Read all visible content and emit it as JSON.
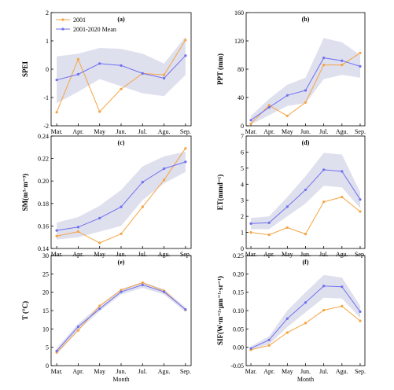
{
  "chart_data": [
    {
      "type": "line",
      "panel_label": "(a)",
      "ylabel": "SPEI",
      "categories": [
        "Mar.",
        "Apr.",
        "May",
        "Jun.",
        "Jul.",
        "Agu.",
        "Sep."
      ],
      "yticks": [
        "-2",
        "-1",
        "0",
        "1",
        "2"
      ],
      "ylim": [
        -2,
        2
      ],
      "legend": {
        "placement": "top-left",
        "entries": [
          "2001",
          "2001-2020 Mean"
        ]
      },
      "series": [
        {
          "name": "2001",
          "color": "#f5a340",
          "values": [
            -1.52,
            0.35,
            -1.5,
            -0.7,
            -0.15,
            -0.2,
            1.03
          ]
        },
        {
          "name": "2001-2020 Mean",
          "color": "#6f6ff0",
          "values": [
            -0.38,
            -0.18,
            0.2,
            0.13,
            -0.15,
            -0.32,
            0.48
          ]
        }
      ],
      "band": {
        "lower": [
          -1.2,
          -0.8,
          -0.35,
          -0.6,
          -0.85,
          -0.95,
          -0.2
        ],
        "upper": [
          0.45,
          0.55,
          0.75,
          0.72,
          0.55,
          0.2,
          1.15
        ]
      }
    },
    {
      "type": "line",
      "panel_label": "(b)",
      "ylabel": "PPT (mm)",
      "categories": [
        "Mar.",
        "Apr.",
        "May",
        "Jun.",
        "Jul.",
        "Agu.",
        "Sep."
      ],
      "yticks": [
        "0",
        "40",
        "80",
        "120",
        "160"
      ],
      "ylim": [
        0,
        160
      ],
      "series": [
        {
          "name": "2001",
          "color": "#f5a340",
          "values": [
            3,
            29,
            14,
            33,
            86,
            86,
            103
          ]
        },
        {
          "name": "2001-2020 Mean",
          "color": "#6f6ff0",
          "values": [
            8,
            26,
            43,
            50,
            96,
            92,
            84
          ]
        }
      ],
      "band": {
        "lower": [
          2,
          15,
          28,
          32,
          66,
          72,
          68
        ],
        "upper": [
          14,
          38,
          58,
          68,
          124,
          118,
          100
        ]
      }
    },
    {
      "type": "line",
      "panel_label": "(c)",
      "ylabel": "SM(m³·m⁻³)",
      "categories": [
        "Mar.",
        "Apr.",
        "May",
        "Jun.",
        "Jul.",
        "Agu.",
        "Sep."
      ],
      "yticks": [
        "0.14",
        "0.16",
        "0.18",
        "0.20",
        "0.22",
        "0.24"
      ],
      "ylim": [
        0.14,
        0.24
      ],
      "series": [
        {
          "name": "2001",
          "color": "#f5a340",
          "values": [
            0.151,
            0.155,
            0.145,
            0.153,
            0.177,
            0.201,
            0.229
          ]
        },
        {
          "name": "2001-2020 Mean",
          "color": "#6f6ff0",
          "values": [
            0.156,
            0.159,
            0.167,
            0.177,
            0.199,
            0.211,
            0.217
          ]
        }
      ],
      "band": {
        "lower": [
          0.148,
          0.15,
          0.155,
          0.16,
          0.183,
          0.198,
          0.208
        ],
        "upper": [
          0.163,
          0.168,
          0.178,
          0.192,
          0.213,
          0.222,
          0.226
        ]
      }
    },
    {
      "type": "line",
      "panel_label": "(d)",
      "ylabel": "ET(mmd⁻¹)",
      "categories": [
        "Mar.",
        "Apr.",
        "May",
        "Jun.",
        "Jul.",
        "Agu.",
        "Sep."
      ],
      "yticks": [
        "0",
        "1",
        "2",
        "3",
        "4",
        "5",
        "6",
        "7"
      ],
      "ylim": [
        0,
        7
      ],
      "series": [
        {
          "name": "2001",
          "color": "#f5a340",
          "values": [
            1.0,
            0.85,
            1.3,
            0.9,
            2.9,
            3.2,
            2.3
          ]
        },
        {
          "name": "2001-2020 Mean",
          "color": "#6f6ff0",
          "values": [
            1.55,
            1.6,
            2.6,
            3.65,
            4.9,
            4.8,
            3.05
          ]
        }
      ],
      "band": {
        "lower": [
          1.2,
          1.2,
          2.0,
          2.8,
          3.9,
          3.8,
          2.5
        ],
        "upper": [
          1.9,
          2.0,
          3.2,
          4.5,
          5.95,
          5.85,
          3.5
        ]
      }
    },
    {
      "type": "line",
      "panel_label": "(e)",
      "ylabel": "T (°C)",
      "xlabel": "Month",
      "categories": [
        "Mar.",
        "Apr.",
        "May",
        "Jun.",
        "Jul.",
        "Agu.",
        "Sep."
      ],
      "yticks": [
        "0",
        "5",
        "10",
        "15",
        "20",
        "25",
        "30"
      ],
      "ylim": [
        0,
        30
      ],
      "series": [
        {
          "name": "2001",
          "color": "#f5a340",
          "values": [
            3.6,
            9.6,
            16.3,
            20.6,
            22.6,
            20.4,
            15.2
          ]
        },
        {
          "name": "2001-2020 Mean",
          "color": "#6f6ff0",
          "values": [
            4.0,
            10.6,
            15.5,
            20.1,
            22.0,
            20.1,
            15.3
          ]
        }
      ],
      "band": {
        "lower": [
          3.0,
          9.6,
          14.8,
          19.4,
          21.2,
          19.4,
          14.6
        ],
        "upper": [
          4.8,
          11.4,
          16.4,
          20.9,
          22.8,
          20.8,
          15.9
        ]
      }
    },
    {
      "type": "line",
      "panel_label": "(f)",
      "ylabel": "SIF(W·m⁻²·μm⁻¹·sr⁻¹)",
      "xlabel": "Month",
      "categories": [
        "Mar.",
        "Apr.",
        "May",
        "Jun.",
        "Jul.",
        "Agu.",
        "Sep."
      ],
      "yticks": [
        "-0.05",
        "0.00",
        "0.05",
        "0.10",
        "0.15",
        "0.20",
        "0.25"
      ],
      "ylim": [
        -0.05,
        0.25
      ],
      "series": [
        {
          "name": "2001",
          "color": "#f5a340",
          "values": [
            -0.007,
            0.005,
            0.04,
            0.066,
            0.101,
            0.112,
            0.072
          ]
        },
        {
          "name": "2001-2020 Mean",
          "color": "#6f6ff0",
          "values": [
            -0.003,
            0.02,
            0.078,
            0.122,
            0.167,
            0.165,
            0.097
          ]
        }
      ],
      "band": {
        "lower": [
          -0.007,
          0.008,
          0.055,
          0.095,
          0.135,
          0.133,
          0.08
        ],
        "upper": [
          0.003,
          0.03,
          0.1,
          0.15,
          0.197,
          0.19,
          0.113
        ]
      }
    }
  ]
}
